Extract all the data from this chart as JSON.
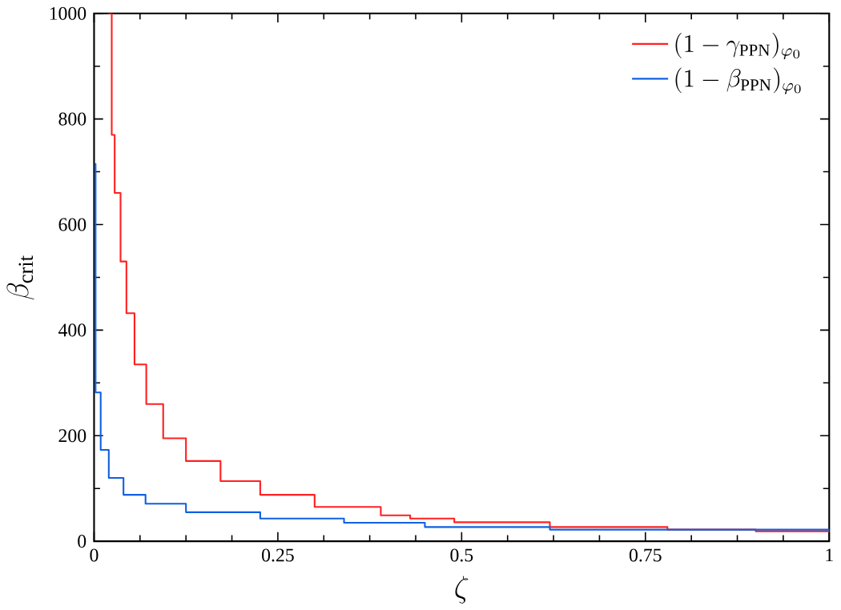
{
  "chart_data": {
    "type": "step",
    "xlabel": "\\zeta",
    "ylabel": "\\beta_{\\rm crit}",
    "xlim": [
      0,
      1
    ],
    "ylim": [
      0,
      1000
    ],
    "xticks": [
      0,
      0.25,
      0.5,
      0.75,
      1
    ],
    "yticks": [
      0,
      200,
      400,
      600,
      800,
      1000
    ],
    "legend": "top right",
    "grid": false,
    "series": [
      {
        "name": "(1-\\gamma_{\\rm PPN})_{\\varphi_0}",
        "color": "#ff2020",
        "x": [
          0.019,
          0.024,
          0.028,
          0.036,
          0.044,
          0.055,
          0.071,
          0.094,
          0.125,
          0.172,
          0.226,
          0.3,
          0.39,
          0.43,
          0.49,
          0.62,
          0.78,
          0.9,
          1
        ],
        "values": [
          1000,
          770,
          660,
          530,
          432,
          335,
          260,
          195,
          152,
          114,
          88,
          65,
          49,
          43,
          36,
          27,
          22,
          19,
          17
        ]
      },
      {
        "name": "(1-\\beta_{\\rm PPN})_{\\varphi_0}",
        "color": "#1060e0",
        "x": [
          0.0005,
          0.002,
          0.009,
          0.02,
          0.04,
          0.07,
          0.125,
          0.226,
          0.34,
          0.45,
          0.62,
          1
        ],
        "values": [
          715,
          282,
          173,
          120,
          88,
          71,
          55,
          43,
          35,
          27,
          22,
          18
        ]
      }
    ]
  }
}
